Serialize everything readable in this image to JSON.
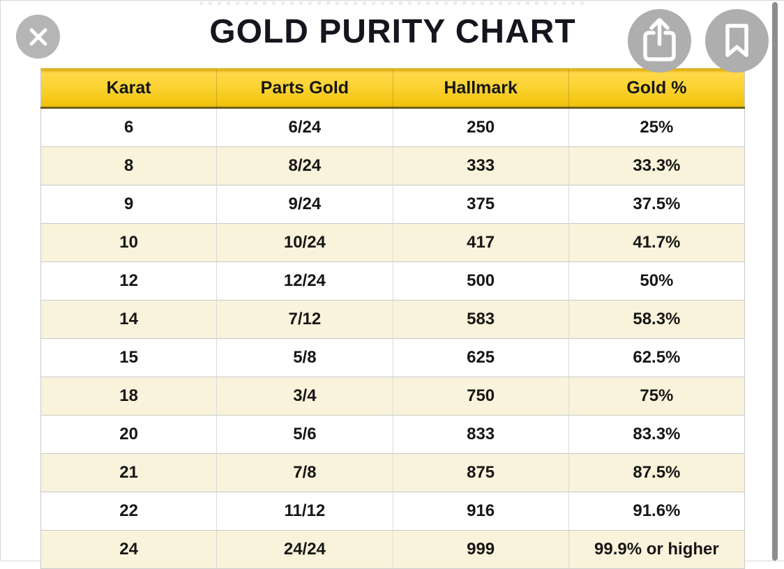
{
  "header": {
    "title": "GOLD PURITY CHART",
    "close_icon": "close-x",
    "share_icon": "share-up-arrow",
    "bookmark_icon": "bookmark-ribbon"
  },
  "table": {
    "columns": [
      "Karat",
      "Parts Gold",
      "Hallmark",
      "Gold %"
    ],
    "rows": [
      [
        "6",
        "6/24",
        "250",
        "25%"
      ],
      [
        "8",
        "8/24",
        "333",
        "33.3%"
      ],
      [
        "9",
        "9/24",
        "375",
        "37.5%"
      ],
      [
        "10",
        "10/24",
        "417",
        "41.7%"
      ],
      [
        "12",
        "12/24",
        "500",
        "50%"
      ],
      [
        "14",
        "7/12",
        "583",
        "58.3%"
      ],
      [
        "15",
        "5/8",
        "625",
        "62.5%"
      ],
      [
        "18",
        "3/4",
        "750",
        "75%"
      ],
      [
        "20",
        "5/6",
        "833",
        "83.3%"
      ],
      [
        "21",
        "7/8",
        "875",
        "87.5%"
      ],
      [
        "22",
        "11/12",
        "916",
        "91.6%"
      ],
      [
        "24",
        "24/24",
        "999",
        "99.9% or higher"
      ]
    ]
  },
  "chart_data": {
    "type": "table",
    "title": "GOLD PURITY CHART",
    "columns": [
      "Karat",
      "Parts Gold",
      "Hallmark",
      "Gold %"
    ],
    "rows": [
      [
        "6",
        "6/24",
        "250",
        "25%"
      ],
      [
        "8",
        "8/24",
        "333",
        "33.3%"
      ],
      [
        "9",
        "9/24",
        "375",
        "37.5%"
      ],
      [
        "10",
        "10/24",
        "417",
        "41.7%"
      ],
      [
        "12",
        "12/24",
        "500",
        "50%"
      ],
      [
        "14",
        "7/12",
        "583",
        "58.3%"
      ],
      [
        "15",
        "5/8",
        "625",
        "62.5%"
      ],
      [
        "18",
        "3/4",
        "750",
        "75%"
      ],
      [
        "20",
        "5/6",
        "833",
        "83.3%"
      ],
      [
        "21",
        "7/8",
        "875",
        "87.5%"
      ],
      [
        "22",
        "11/12",
        "916",
        "91.6%"
      ],
      [
        "24",
        "24/24",
        "999",
        "99.9% or higher"
      ]
    ]
  },
  "colors": {
    "header_gradient_top": "#ffd94b",
    "header_gradient_bottom": "#eec00e",
    "header_border": "#6d5f15",
    "row_cream": "#faf3db",
    "row_white": "#ffffff",
    "separator": "#d9d9d9",
    "button_gray": "#aeaeae",
    "scrollbar_gray": "#8d8d8d",
    "title_color": "#15151d"
  }
}
